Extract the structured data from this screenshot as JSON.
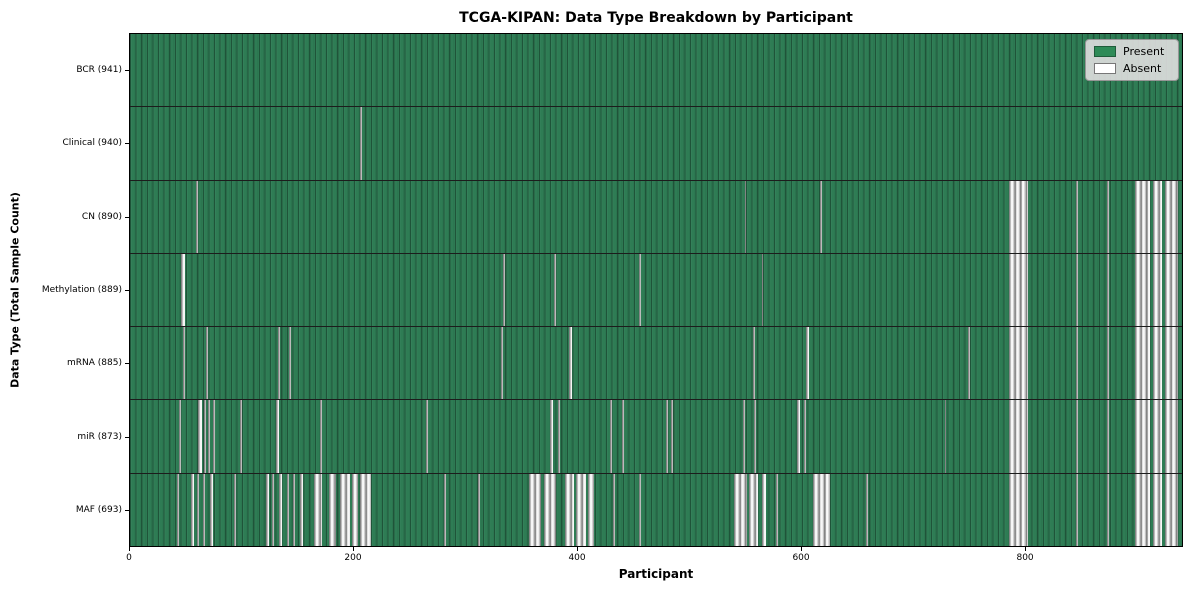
{
  "figure": {
    "title": "TCGA-KIPAN: Data Type Breakdown by Participant",
    "xlabel": "Participant",
    "ylabel": "Data Type (Total Sample Count)"
  },
  "legend": {
    "items": [
      {
        "label": "Present",
        "color": "#2E8B57"
      },
      {
        "label": "Absent",
        "color": "#FFFFFF"
      }
    ]
  },
  "chart_data": {
    "type": "heatmap",
    "title": "TCGA-KIPAN: Data Type Breakdown by Participant",
    "xlabel": "Participant",
    "ylabel": "Data Type (Total Sample Count)",
    "legend": [
      "Present",
      "Absent"
    ],
    "legend_position": "upper right",
    "present_color": "#2E8B57",
    "absent_color": "#FFFFFF",
    "grid": false,
    "n_participants": 941,
    "x_range": [
      0,
      941
    ],
    "x_ticks": [
      0,
      200,
      400,
      600,
      800
    ],
    "rows": [
      {
        "label": "BCR (941)",
        "data_type": "BCR",
        "total_samples": 941,
        "absent_runs": []
      },
      {
        "label": "Clinical (940)",
        "data_type": "Clinical",
        "total_samples": 940,
        "absent_runs": [
          [
            206,
            207
          ]
        ]
      },
      {
        "label": "CN (890)",
        "data_type": "CN",
        "total_samples": 890,
        "absent_runs": [
          [
            59,
            61
          ],
          [
            550,
            551
          ],
          [
            617,
            619
          ],
          [
            786,
            803
          ],
          [
            846,
            848
          ],
          [
            874,
            876
          ],
          [
            899,
            912
          ],
          [
            915,
            923
          ],
          [
            926,
            937
          ]
        ]
      },
      {
        "label": "Methylation (889)",
        "data_type": "Methylation",
        "total_samples": 889,
        "absent_runs": [
          [
            46,
            49
          ],
          [
            334,
            335
          ],
          [
            379,
            381
          ],
          [
            455,
            457
          ],
          [
            565,
            566
          ],
          [
            786,
            803
          ],
          [
            846,
            848
          ],
          [
            874,
            876
          ],
          [
            899,
            912
          ],
          [
            915,
            923
          ],
          [
            926,
            937
          ]
        ]
      },
      {
        "label": "mRNA (885)",
        "data_type": "mRNA",
        "total_samples": 885,
        "absent_runs": [
          [
            47,
            49
          ],
          [
            68,
            70
          ],
          [
            132,
            134
          ],
          [
            142,
            144
          ],
          [
            332,
            334
          ],
          [
            393,
            395
          ],
          [
            557,
            559
          ],
          [
            605,
            607
          ],
          [
            750,
            751
          ],
          [
            786,
            803
          ],
          [
            846,
            848
          ],
          [
            874,
            876
          ],
          [
            899,
            912
          ],
          [
            915,
            923
          ],
          [
            926,
            937
          ]
        ]
      },
      {
        "label": "miR (873)",
        "data_type": "miR",
        "total_samples": 873,
        "absent_runs": [
          [
            44,
            46
          ],
          [
            61,
            64
          ],
          [
            66,
            68
          ],
          [
            70,
            72
          ],
          [
            74,
            76
          ],
          [
            98,
            100
          ],
          [
            131,
            133
          ],
          [
            170,
            172
          ],
          [
            265,
            266
          ],
          [
            376,
            378
          ],
          [
            383,
            385
          ],
          [
            429,
            431
          ],
          [
            440,
            442
          ],
          [
            479,
            481
          ],
          [
            484,
            486
          ],
          [
            548,
            550
          ],
          [
            558,
            560
          ],
          [
            597,
            599
          ],
          [
            603,
            605
          ],
          [
            729,
            730
          ],
          [
            786,
            803
          ],
          [
            846,
            848
          ],
          [
            874,
            876
          ],
          [
            899,
            912
          ],
          [
            915,
            923
          ],
          [
            926,
            937
          ]
        ]
      },
      {
        "label": "MAF (693)",
        "data_type": "MAF",
        "total_samples": 693,
        "absent_runs": [
          [
            42,
            44
          ],
          [
            55,
            57
          ],
          [
            60,
            62
          ],
          [
            65,
            67
          ],
          [
            72,
            74
          ],
          [
            93,
            95
          ],
          [
            122,
            124
          ],
          [
            127,
            129
          ],
          [
            133,
            136
          ],
          [
            140,
            142
          ],
          [
            146,
            148
          ],
          [
            152,
            155
          ],
          [
            165,
            172
          ],
          [
            178,
            184
          ],
          [
            188,
            197
          ],
          [
            199,
            204
          ],
          [
            206,
            216
          ],
          [
            281,
            283
          ],
          [
            311,
            313
          ],
          [
            357,
            368
          ],
          [
            370,
            381
          ],
          [
            389,
            397
          ],
          [
            399,
            408
          ],
          [
            410,
            415
          ],
          [
            432,
            434
          ],
          [
            455,
            457
          ],
          [
            540,
            552
          ],
          [
            554,
            562
          ],
          [
            565,
            569
          ],
          [
            578,
            580
          ],
          [
            611,
            626
          ],
          [
            658,
            660
          ],
          [
            786,
            803
          ],
          [
            846,
            848
          ],
          [
            874,
            876
          ],
          [
            899,
            912
          ],
          [
            915,
            923
          ],
          [
            926,
            937
          ]
        ]
      }
    ]
  }
}
